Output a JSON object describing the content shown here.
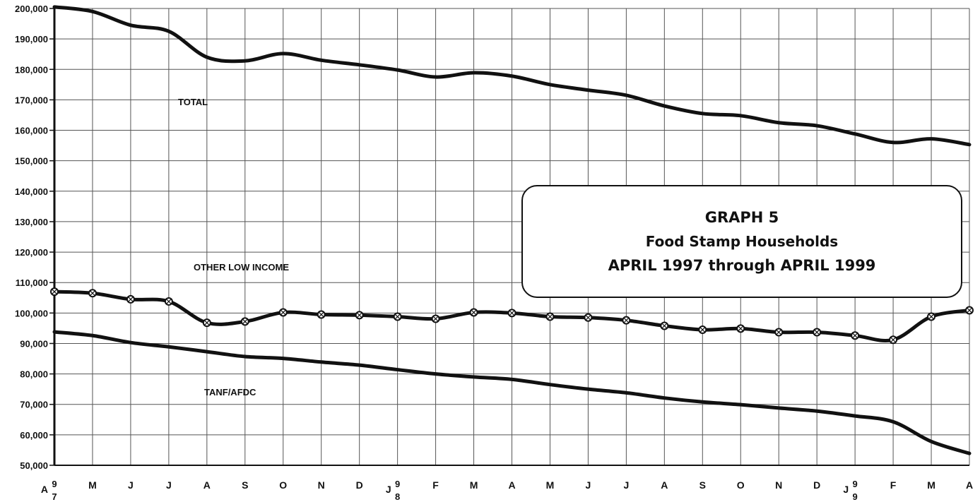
{
  "chart_data": {
    "type": "line",
    "title": "GRAPH 5",
    "subtitle": "Food Stamp Households",
    "subtitle2": "APRIL 1997 through APRIL 1999",
    "xlabel": "",
    "ylabel": "",
    "ylim": [
      50000,
      200000
    ],
    "yticks": [
      50000,
      60000,
      70000,
      80000,
      90000,
      100000,
      110000,
      120000,
      130000,
      140000,
      150000,
      160000,
      170000,
      180000,
      190000,
      200000
    ],
    "ytick_labels": [
      "50,000",
      "60,000",
      "70,000",
      "80,000",
      "90,000",
      "100,000",
      "110,000",
      "120,000",
      "130,000",
      "140,000",
      "150,000",
      "160,000",
      "170,000",
      "180,000",
      "190,000",
      "200,000"
    ],
    "categories": [
      "A",
      "M",
      "J",
      "J",
      "A",
      "S",
      "O",
      "N",
      "D",
      "J",
      "F",
      "M",
      "A",
      "M",
      "J",
      "J",
      "A",
      "S",
      "O",
      "N",
      "D",
      "J",
      "F",
      "M",
      "A"
    ],
    "year_marks": [
      {
        "index": 0,
        "digits": [
          "9",
          "7"
        ]
      },
      {
        "index": 9,
        "digits": [
          "9",
          "8"
        ]
      },
      {
        "index": 21,
        "digits": [
          "9",
          "9"
        ]
      }
    ],
    "grid": true,
    "series": [
      {
        "name": "TOTAL",
        "values": [
          200500,
          199000,
          194500,
          192500,
          184000,
          182800,
          185200,
          183000,
          181500,
          179800,
          177500,
          178900,
          177800,
          175000,
          173200,
          171500,
          168000,
          165500,
          164800,
          162500,
          161500,
          158800,
          156000,
          157200,
          155300
        ],
        "markers": false
      },
      {
        "name": "OTHER LOW INCOME",
        "values": [
          107000,
          106500,
          104500,
          103800,
          96800,
          97200,
          100200,
          99500,
          99300,
          98800,
          98100,
          100200,
          100000,
          98800,
          98500,
          97600,
          95800,
          94500,
          94900,
          93700,
          93700,
          92600,
          91200,
          98800,
          100900
        ],
        "markers": true
      },
      {
        "name": "TANF/AFDC",
        "values": [
          93800,
          92600,
          90300,
          88900,
          87300,
          85700,
          85100,
          83900,
          82900,
          81400,
          80000,
          79000,
          78200,
          76500,
          75000,
          73800,
          72100,
          70800,
          69900,
          68800,
          67800,
          66200,
          64300,
          57800,
          53900
        ],
        "markers": false
      }
    ],
    "annotations": [
      {
        "text": "TOTAL",
        "series": "TOTAL"
      },
      {
        "text": "OTHER LOW INCOME",
        "series": "OTHER LOW INCOME"
      },
      {
        "text": "TANF/AFDC",
        "series": "TANF/AFDC"
      }
    ],
    "line_color": "#111111",
    "grid_color": "#555555"
  }
}
